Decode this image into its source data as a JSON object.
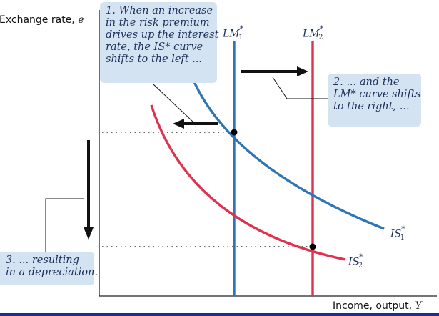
{
  "axes": {
    "y_label": "Exchange rate,",
    "y_symbol": "e",
    "x_label": "Income, output,",
    "x_symbol": "Y"
  },
  "curves": {
    "lm1": {
      "name": "LM",
      "sup": "*",
      "sub": "1",
      "color": "#2e75b6"
    },
    "lm2": {
      "name": "LM",
      "sup": "*",
      "sub": "2",
      "color": "#e0324f"
    },
    "is1": {
      "name": "IS",
      "sup": "*",
      "sub": "1",
      "color": "#2e75b6"
    },
    "is2": {
      "name": "IS",
      "sup": "*",
      "sub": "2",
      "color": "#e0324f"
    }
  },
  "callouts": {
    "step1": [
      "1. When an increase",
      "in the risk premium",
      "drives up the interest",
      "rate, the IS* curve",
      "shifts to the left ..."
    ],
    "step2": [
      "2. ... and the",
      "LM* curve shifts",
      "to the right, ..."
    ],
    "step3": [
      "3. ... resulting",
      "in a depreciation."
    ]
  },
  "colors": {
    "callout_bg": "#d3e3f1",
    "blue_curve": "#2e75b6",
    "red_curve": "#e0324f",
    "arrow": "#111111",
    "bar": "#1d2f8c"
  }
}
